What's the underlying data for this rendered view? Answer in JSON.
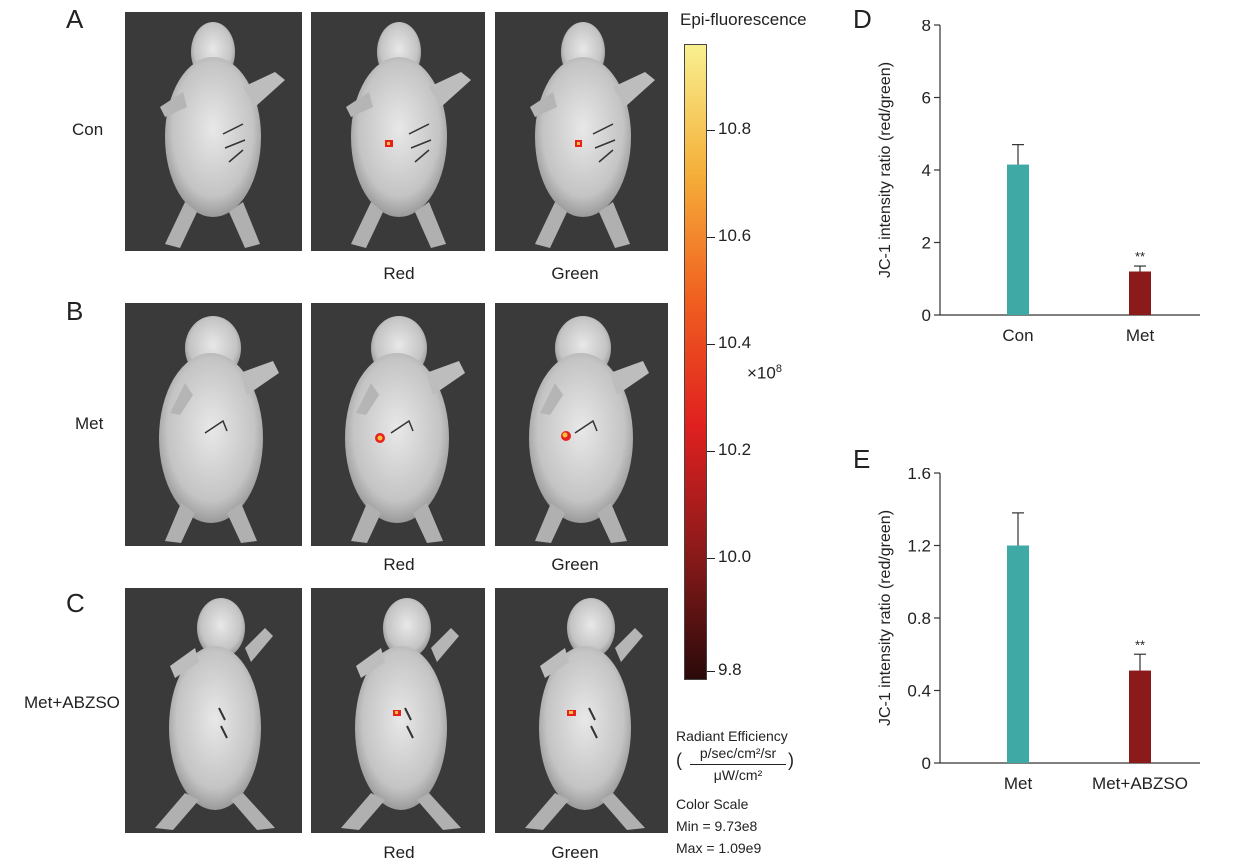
{
  "panels": {
    "A": {
      "letter": "A",
      "row_label": "Con"
    },
    "B": {
      "letter": "B",
      "row_label": "Met"
    },
    "C": {
      "letter": "C",
      "row_label": "Met+ABZSO"
    },
    "D": {
      "letter": "D"
    },
    "E": {
      "letter": "E"
    }
  },
  "column_labels": {
    "red": "Red",
    "green": "Green"
  },
  "colorbar": {
    "title": "Epi-fluorescence",
    "ticks": [
      "10.8",
      "10.6",
      "10.4",
      "10.2",
      "10.0",
      "9.8"
    ],
    "multiplier": "×10",
    "multiplier_exp": "8",
    "units": {
      "line1": "Radiant Efficiency",
      "numerator": "p/sec/cm²/sr",
      "denominator": "μW/cm²",
      "open_paren": "(",
      "close_paren": ")",
      "color_scale": "Color Scale",
      "min": "Min = 9.73e8",
      "max": "Max = 1.09e9"
    },
    "colors": [
      "#2b0a0a",
      "#8b1a1a",
      "#e02020",
      "#f06020",
      "#f5b03a",
      "#f8f090"
    ]
  },
  "chart_data": [
    {
      "type": "bar",
      "panel": "D",
      "categories": [
        "Con",
        "Met"
      ],
      "values": [
        4.15,
        1.2
      ],
      "errors": [
        0.55,
        0.15
      ],
      "significance": [
        "",
        "**"
      ],
      "colors": [
        "#3fa9a5",
        "#8b1a1a"
      ],
      "ylabel": "JC-1 intensity ratio (red/green)",
      "ylim": [
        0,
        8
      ],
      "yticks": [
        "0",
        "2",
        "4",
        "6",
        "8"
      ],
      "ytick_values": [
        0,
        2,
        4,
        6,
        8
      ]
    },
    {
      "type": "bar",
      "panel": "E",
      "categories": [
        "Met",
        "Met+ABZSO"
      ],
      "values": [
        1.2,
        0.51
      ],
      "errors": [
        0.18,
        0.09
      ],
      "significance": [
        "",
        "**"
      ],
      "colors": [
        "#3fa9a5",
        "#8b1a1a"
      ],
      "ylabel": "JC-1 intensity ratio (red/green)",
      "ylim": [
        0,
        1.6
      ],
      "yticks": [
        "0",
        "0.4",
        "0.8",
        "1.2",
        "1.6"
      ],
      "ytick_values": [
        0,
        0.4,
        0.8,
        1.2,
        1.6
      ]
    }
  ]
}
